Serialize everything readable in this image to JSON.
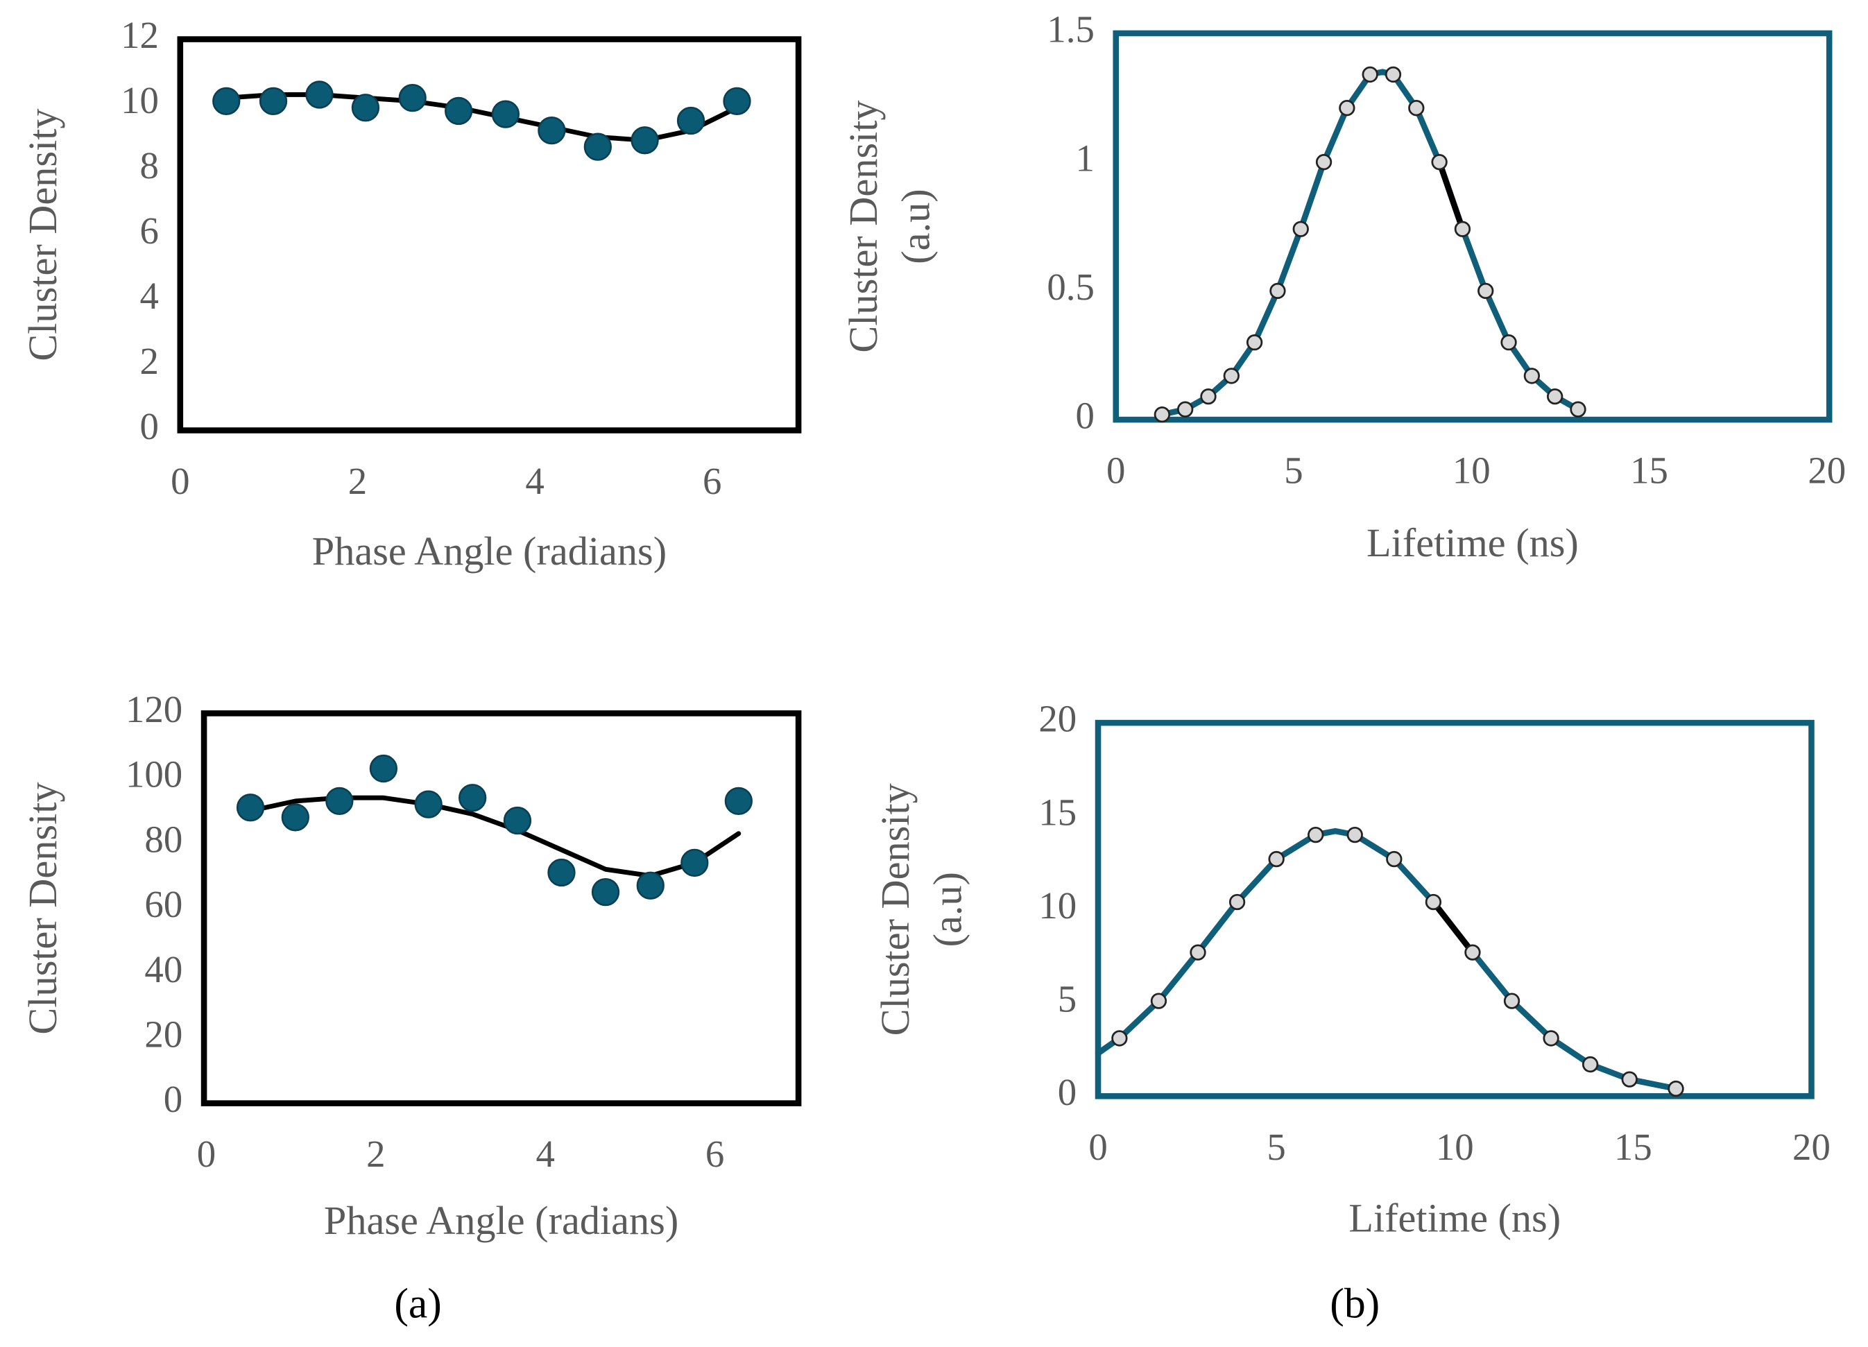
{
  "chart_data": [
    {
      "type": "scatter",
      "ylabel": "Cluster  Density",
      "xlabel": "Phase Angle  (radians)",
      "xlim": [
        0,
        7
      ],
      "ylim": [
        0,
        12
      ],
      "xticks": [
        0,
        2,
        4,
        6
      ],
      "yticks": [
        0,
        2,
        4,
        6,
        8,
        10,
        12
      ],
      "frame_color": "#000000",
      "series": [
        {
          "mode": "lines",
          "color": "#000000",
          "x": [
            0.52,
            1.05,
            1.57,
            2.09,
            2.62,
            3.14,
            3.67,
            4.19,
            4.71,
            5.24,
            5.76,
            6.28
          ],
          "values": [
            10.2,
            10.3,
            10.3,
            10.2,
            10.1,
            9.9,
            9.6,
            9.3,
            9.0,
            8.9,
            9.2,
            9.9
          ]
        },
        {
          "mode": "markers",
          "color": "#0b5a73",
          "x": [
            0.52,
            1.05,
            1.57,
            2.09,
            2.62,
            3.14,
            3.67,
            4.19,
            4.71,
            5.24,
            5.76,
            6.28
          ],
          "values": [
            10.1,
            10.1,
            10.3,
            9.9,
            10.2,
            9.8,
            9.7,
            9.2,
            8.7,
            8.9,
            9.5,
            10.1
          ]
        }
      ]
    },
    {
      "type": "scatter",
      "ylabel": [
        "Cluster Density",
        "(a.u)"
      ],
      "xlabel": "Lifetime  (ns)",
      "xlim": [
        0,
        20
      ],
      "ylim": [
        0,
        1.5
      ],
      "xticks": [
        0,
        5,
        10,
        15,
        20
      ],
      "yticks": [
        0,
        0.5,
        1,
        1.5
      ],
      "frame_color": "#0f5f7a",
      "series": [
        {
          "mode": "lines",
          "color": "#0f5f7a",
          "x": [
            1.3,
            1.95,
            2.6,
            3.25,
            3.9,
            4.55,
            5.2,
            5.85,
            6.5,
            7.15,
            7.5,
            7.8,
            8.45,
            9.1,
            9.75,
            10.4,
            11.05,
            11.7,
            12.35,
            13.0
          ],
          "values": [
            0.02,
            0.04,
            0.09,
            0.17,
            0.3,
            0.5,
            0.74,
            1.0,
            1.21,
            1.34,
            1.35,
            1.34,
            1.21,
            1.0,
            0.74,
            0.5,
            0.3,
            0.17,
            0.09,
            0.04
          ]
        },
        {
          "mode": "lines",
          "color": "#000000",
          "x": [
            9.1,
            9.75
          ],
          "values": [
            1.0,
            0.74
          ]
        },
        {
          "mode": "markers",
          "color": "#d8d8d8",
          "x": [
            1.3,
            1.95,
            2.6,
            3.25,
            3.9,
            4.55,
            5.2,
            5.85,
            6.5,
            7.15,
            7.8,
            8.45,
            9.1,
            9.75,
            10.4,
            11.05,
            11.7,
            12.35,
            13.0
          ],
          "values": [
            0.02,
            0.04,
            0.09,
            0.17,
            0.3,
            0.5,
            0.74,
            1.0,
            1.21,
            1.34,
            1.34,
            1.21,
            1.0,
            0.74,
            0.5,
            0.3,
            0.17,
            0.09,
            0.04
          ]
        }
      ]
    },
    {
      "type": "scatter",
      "ylabel": "Cluster  Density",
      "xlabel": "Phase Angle  (radians)",
      "xlim": [
        0,
        7
      ],
      "ylim": [
        0,
        120
      ],
      "xticks": [
        0,
        2,
        4,
        6
      ],
      "yticks": [
        0,
        20,
        40,
        60,
        80,
        100,
        120
      ],
      "frame_color": "#000000",
      "series": [
        {
          "mode": "lines",
          "color": "#000000",
          "x": [
            0.52,
            1.05,
            1.57,
            2.09,
            2.62,
            3.14,
            3.67,
            4.19,
            4.71,
            5.24,
            5.76,
            6.28
          ],
          "values": [
            90,
            93,
            94,
            94,
            92,
            89,
            84,
            78,
            72,
            70,
            74,
            83
          ]
        },
        {
          "mode": "markers",
          "color": "#0b5a73",
          "x": [
            0.52,
            1.05,
            1.57,
            2.09,
            2.62,
            3.14,
            3.67,
            4.19,
            4.71,
            5.24,
            5.76,
            6.28
          ],
          "values": [
            91,
            88,
            93,
            103,
            92,
            94,
            87,
            71,
            65,
            67,
            74,
            93
          ]
        }
      ]
    },
    {
      "type": "scatter",
      "ylabel": [
        "Cluster Density",
        "(a.u)"
      ],
      "xlabel": "Lifetime  (ns)",
      "xlim": [
        0,
        20
      ],
      "ylim": [
        0,
        20
      ],
      "xticks": [
        0,
        5,
        10,
        15,
        20
      ],
      "yticks": [
        0,
        5,
        10,
        15,
        20
      ],
      "frame_color": "#0f5f7a",
      "series": [
        {
          "mode": "lines",
          "color": "#0f5f7a",
          "x": [
            0,
            0.6,
            1.7,
            2.8,
            3.9,
            5.0,
            6.1,
            6.65,
            7.2,
            8.3,
            9.4,
            10.5,
            11.6,
            12.7,
            13.8,
            14.9,
            16.2
          ],
          "values": [
            2.3,
            3.1,
            5.1,
            7.7,
            10.4,
            12.7,
            14.0,
            14.2,
            14.0,
            12.7,
            10.4,
            7.7,
            5.1,
            3.1,
            1.7,
            0.9,
            0.4
          ]
        },
        {
          "mode": "lines",
          "color": "#000000",
          "x": [
            9.4,
            10.5
          ],
          "values": [
            10.4,
            7.7
          ]
        },
        {
          "mode": "markers",
          "color": "#d8d8d8",
          "x": [
            0.6,
            1.7,
            2.8,
            3.9,
            5.0,
            6.1,
            7.2,
            8.3,
            9.4,
            10.5,
            11.6,
            12.7,
            13.8,
            14.9,
            16.2
          ],
          "values": [
            3.1,
            5.1,
            7.7,
            10.4,
            12.7,
            14.0,
            14.0,
            12.7,
            10.4,
            7.7,
            5.1,
            3.1,
            1.7,
            0.9,
            0.4
          ]
        }
      ]
    }
  ],
  "panel_labels": [
    "(a)",
    "(b)"
  ]
}
